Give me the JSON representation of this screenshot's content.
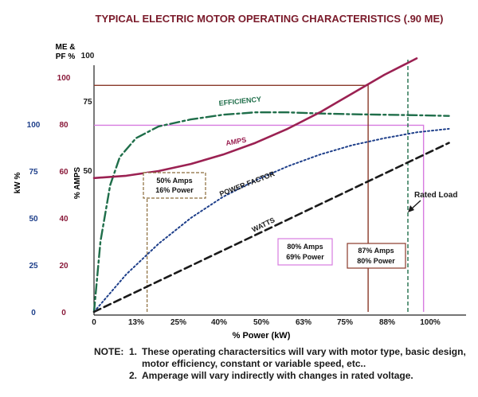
{
  "chart_data": {
    "type": "line",
    "title": "TYPICAL ELECTRIC MOTOR OPERATING CHARACTERISTICS (.90 ME)",
    "xlabel": "% Power (kW)",
    "x_ticks": [
      "0",
      "13%",
      "25%",
      "40%",
      "50%",
      "63%",
      "75%",
      "88%",
      "100%"
    ],
    "axes": {
      "me_pf": {
        "label_line1": "ME &",
        "label_line2": "PF %",
        "ticks": [
          "0",
          "20",
          "40",
          "60",
          "80",
          "100"
        ],
        "range": [
          0,
          100
        ]
      },
      "amps": {
        "label": "% AMPS",
        "ticks": [
          "50",
          "75",
          "100"
        ]
      },
      "kw": {
        "label": "kW %",
        "ticks": [
          "0",
          "25",
          "50",
          "75",
          "100"
        ],
        "range": [
          0,
          125
        ]
      }
    },
    "series": [
      {
        "name": "EFFICIENCY",
        "x": [
          0,
          2,
          5,
          8,
          13,
          20,
          30,
          40,
          50,
          60,
          70,
          80,
          90,
          100,
          110
        ],
        "y": [
          0,
          30,
          54,
          66,
          74,
          79,
          82,
          84,
          85,
          85,
          84.5,
          84.2,
          84,
          83.8,
          83.5
        ]
      },
      {
        "name": "AMPS",
        "x": [
          0,
          10,
          20,
          30,
          40,
          50,
          60,
          70,
          80,
          90,
          100
        ],
        "y": [
          57,
          58,
          60,
          63,
          67,
          72,
          78,
          85,
          93,
          101,
          108
        ]
      },
      {
        "name": "POWER FACTOR",
        "x": [
          0,
          10,
          20,
          30,
          40,
          50,
          60,
          70,
          80,
          90,
          100,
          110
        ],
        "y": [
          0,
          16,
          29,
          40,
          49,
          56,
          62,
          67,
          71,
          74,
          76.5,
          78
        ]
      },
      {
        "name": "WATTS",
        "x": [
          0,
          110
        ],
        "y": [
          0,
          72
        ]
      }
    ],
    "reference_lines": [
      {
        "x": 13,
        "y": 0,
        "label": [
          "50% Amps",
          "16% Power"
        ]
      },
      {
        "x": 73,
        "y": 79.5,
        "label": [
          "80% Amps",
          "69% Power"
        ]
      },
      {
        "x": 82,
        "y": 96.5,
        "label": [
          "87% Amps",
          "80% Power"
        ]
      },
      {
        "x": 96,
        "y": 0
      }
    ],
    "rated_load_label": "Rated Load",
    "notes_heading": "NOTE:",
    "notes": [
      {
        "num": "1.",
        "text": "These operating charactersitics will vary with motor type, basic design, motor efficiency, constant or variable speed, etc.."
      },
      {
        "num": "2.",
        "text": "Amperage will vary indirectly with changes in rated voltage."
      }
    ],
    "colors": {
      "efficiency": "#1f6e4a",
      "amps": "#9b2152",
      "power_factor": "#1e3f8a",
      "watts": "#1a1a1a",
      "ref_16": "#8b6c3a",
      "ref_69": "#d77be0",
      "ref_80": "#8a3a2a",
      "ref_rated": "#1f6e4a",
      "me_axis": "#8a1a3a",
      "amps_axis": "#1a1a1a",
      "kw_axis": "#1e3f8a",
      "title": "#7a1a2a"
    }
  }
}
